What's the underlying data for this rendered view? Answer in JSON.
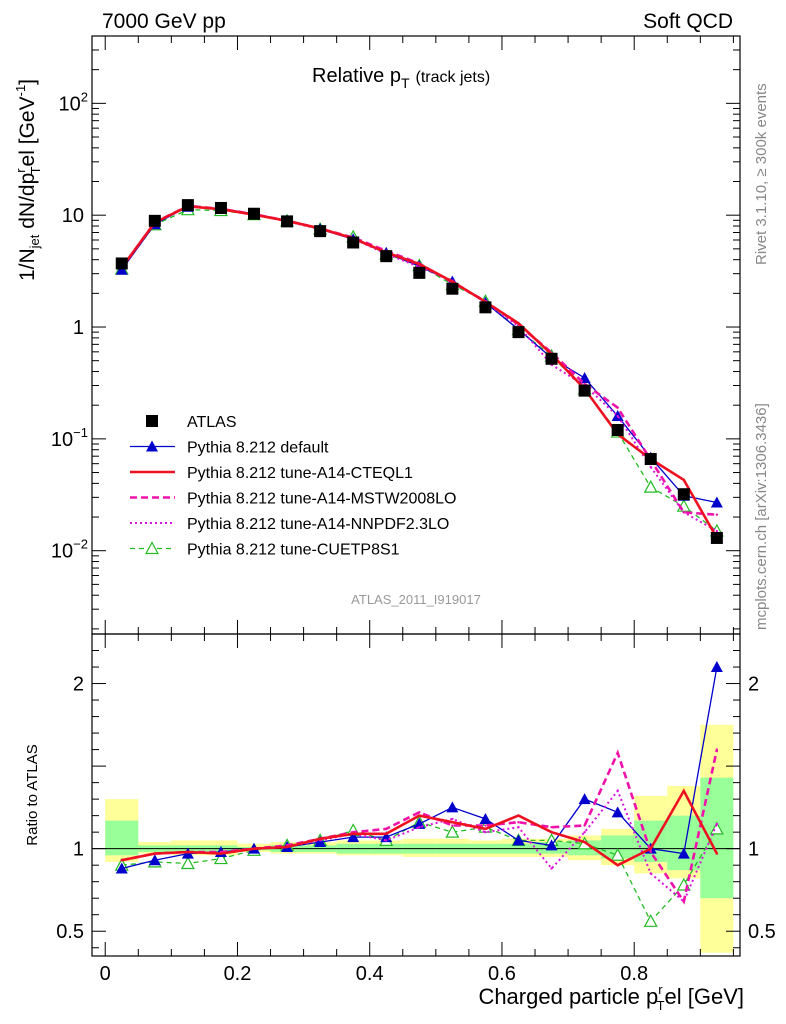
{
  "header": {
    "left": "7000 GeV pp",
    "right": "Soft QCD"
  },
  "side": {
    "rivet": "Rivet 3.1.10, ≥ 300k events",
    "mcplots": "mcplots.cern.ch [arXiv:1306.3436]"
  },
  "colors": {
    "atlas": "#000000",
    "default": "#0000cc",
    "cteql1": "#ee1122",
    "mstw": "#ee11aa",
    "nnpdf": "#dd11dd",
    "cuetp8s1": "#22bb22",
    "band_yellow": "#ffff99",
    "band_green": "#99ff99"
  },
  "chart_data": [
    {
      "type": "line",
      "title": "Relative p",
      "title_sub": "T",
      "title_suffix": "(track jets)",
      "watermark": "ATLAS_2011_I919017",
      "ylabel": "1/N",
      "ylabel_sub1": "jet",
      "ylabel_mid": " dN/dp",
      "ylabel_sup": "r",
      "ylabel_sub2": "T",
      "ylabel_tail": "el [GeV",
      "ylabel_sup2": "-1",
      "ylabel_end": "]",
      "yscale": "log",
      "ylim": [
        0.0018,
        400
      ],
      "xlim": [
        -0.02,
        0.96
      ],
      "yticks": [
        {
          "value": 100,
          "label": "10",
          "sup": "2"
        },
        {
          "value": 10,
          "label": "10",
          "sup": ""
        },
        {
          "value": 1,
          "label": "1",
          "sup": ""
        },
        {
          "value": 0.1,
          "label": "10",
          "sup": "−1"
        },
        {
          "value": 0.01,
          "label": "10",
          "sup": "−2"
        }
      ],
      "x": [
        0.025,
        0.075,
        0.125,
        0.175,
        0.225,
        0.275,
        0.325,
        0.375,
        0.425,
        0.475,
        0.525,
        0.575,
        0.625,
        0.675,
        0.725,
        0.775,
        0.825,
        0.875,
        0.925
      ],
      "series": [
        {
          "key": "atlas",
          "name": "ATLAS",
          "values": [
            3.7,
            8.9,
            12.3,
            11.6,
            10.3,
            8.8,
            7.2,
            5.7,
            4.3,
            3.05,
            2.2,
            1.5,
            0.9,
            0.52,
            0.27,
            0.12,
            0.066,
            0.032,
            0.013
          ]
        },
        {
          "key": "default",
          "name": "Pythia 8.212 default",
          "values": [
            3.25,
            8.3,
            11.9,
            11.4,
            10.3,
            8.9,
            7.5,
            6.1,
            4.6,
            3.5,
            2.55,
            1.65,
            0.95,
            0.53,
            0.35,
            0.16,
            0.068,
            0.031,
            0.027
          ]
        },
        {
          "key": "cteql1",
          "name": "Pythia 8.212 tune-A14-CTEQL1",
          "values": [
            3.4,
            8.6,
            12.0,
            11.3,
            10.1,
            8.9,
            7.6,
            6.2,
            4.65,
            3.65,
            2.55,
            1.68,
            1.08,
            0.57,
            0.28,
            0.11,
            0.066,
            0.043,
            0.013
          ]
        },
        {
          "key": "mstw",
          "name": "Pythia 8.212 tune-A14-MSTW2008LO",
          "values": [
            3.4,
            8.6,
            12.1,
            11.4,
            10.2,
            8.9,
            7.6,
            6.3,
            4.8,
            3.7,
            2.5,
            1.7,
            1.05,
            0.59,
            0.31,
            0.19,
            0.065,
            0.022,
            0.021
          ]
        },
        {
          "key": "nnpdf",
          "name": "Pythia 8.212 tune-A14-NNPDF2.3LO",
          "values": [
            3.4,
            8.6,
            12.0,
            11.3,
            10.1,
            8.8,
            7.5,
            6.2,
            4.5,
            3.45,
            2.6,
            1.65,
            1.02,
            0.46,
            0.3,
            0.16,
            0.056,
            0.022,
            0.015
          ]
        },
        {
          "key": "cuetp8s1",
          "name": "Pythia 8.212 tune-CUETP8S1",
          "values": [
            3.3,
            8.2,
            11.2,
            11.0,
            10.1,
            8.9,
            7.5,
            6.4,
            4.5,
            3.55,
            2.4,
            1.7,
            0.95,
            0.55,
            0.28,
            0.115,
            0.037,
            0.025,
            0.015
          ]
        }
      ]
    },
    {
      "type": "line",
      "xlabel": "Charged particle p",
      "xlabel_sup": "r",
      "xlabel_sub": "T",
      "xlabel_tail": "el [GeV]",
      "ylabel": "Ratio to ATLAS",
      "ylim": [
        0.35,
        2.3
      ],
      "xlim": [
        -0.02,
        0.96
      ],
      "yticks": [
        {
          "value": 0.5,
          "label": "0.5"
        },
        {
          "value": 1,
          "label": "1"
        },
        {
          "value": 2,
          "label": "2"
        }
      ],
      "xticks": [
        {
          "value": 0,
          "label": "0"
        },
        {
          "value": 0.2,
          "label": "0.2"
        },
        {
          "value": 0.4,
          "label": "0.4"
        },
        {
          "value": 0.6,
          "label": "0.6"
        },
        {
          "value": 0.8,
          "label": "0.8"
        }
      ],
      "band_edges": [
        0,
        0.05,
        0.1,
        0.15,
        0.2,
        0.25,
        0.3,
        0.35,
        0.4,
        0.45,
        0.5,
        0.55,
        0.6,
        0.65,
        0.7,
        0.75,
        0.8,
        0.85,
        0.9,
        0.95
      ],
      "yellow_band": [
        [
          0.92,
          1.3
        ],
        [
          0.97,
          1.04
        ],
        [
          0.96,
          1.05
        ],
        [
          0.96,
          1.05
        ],
        [
          0.98,
          1.03
        ],
        [
          0.97,
          1.04
        ],
        [
          0.97,
          1.04
        ],
        [
          0.96,
          1.05
        ],
        [
          0.96,
          1.05
        ],
        [
          0.95,
          1.06
        ],
        [
          0.95,
          1.06
        ],
        [
          0.95,
          1.05
        ],
        [
          0.95,
          1.06
        ],
        [
          0.95,
          1.06
        ],
        [
          0.93,
          1.08
        ],
        [
          0.9,
          1.12
        ],
        [
          0.85,
          1.32
        ],
        [
          0.82,
          1.38
        ],
        [
          0.37,
          1.75
        ]
      ],
      "green_band": [
        [
          0.96,
          1.17
        ],
        [
          0.98,
          1.02
        ],
        [
          0.98,
          1.02
        ],
        [
          0.98,
          1.02
        ],
        [
          0.99,
          1.01
        ],
        [
          0.98,
          1.02
        ],
        [
          0.98,
          1.02
        ],
        [
          0.97,
          1.03
        ],
        [
          0.97,
          1.03
        ],
        [
          0.97,
          1.03
        ],
        [
          0.97,
          1.03
        ],
        [
          0.97,
          1.03
        ],
        [
          0.97,
          1.03
        ],
        [
          0.97,
          1.04
        ],
        [
          0.96,
          1.05
        ],
        [
          0.94,
          1.08
        ],
        [
          0.92,
          1.17
        ],
        [
          0.87,
          1.2
        ],
        [
          0.7,
          1.43
        ]
      ],
      "series": [
        {
          "key": "default",
          "name": "Pythia 8.212 default",
          "values": [
            0.88,
            0.93,
            0.97,
            0.98,
            1.0,
            1.01,
            1.04,
            1.07,
            1.07,
            1.15,
            1.25,
            1.18,
            1.05,
            1.02,
            1.3,
            1.22,
            1.0,
            0.97,
            2.1
          ]
        },
        {
          "key": "cteql1",
          "name": "Pythia 8.212 tune-A14-CTEQL1",
          "values": [
            0.93,
            0.97,
            0.98,
            0.97,
            1.0,
            1.01,
            1.06,
            1.09,
            1.09,
            1.2,
            1.16,
            1.12,
            1.2,
            1.1,
            1.04,
            0.9,
            1.0,
            1.35,
            0.97
          ]
        },
        {
          "key": "mstw",
          "name": "Pythia 8.212 tune-A14-MSTW2008LO",
          "values": [
            0.93,
            0.97,
            0.98,
            0.98,
            1.0,
            1.02,
            1.06,
            1.1,
            1.12,
            1.22,
            1.14,
            1.14,
            1.16,
            1.13,
            1.14,
            1.58,
            0.98,
            0.68,
            1.6
          ]
        },
        {
          "key": "nnpdf",
          "name": "Pythia 8.212 tune-A14-NNPDF2.3LO",
          "values": [
            0.93,
            0.97,
            0.98,
            0.97,
            1.0,
            1.01,
            1.05,
            1.09,
            1.05,
            1.13,
            1.18,
            1.1,
            1.13,
            0.88,
            1.1,
            1.35,
            0.85,
            0.68,
            1.15
          ]
        },
        {
          "key": "cuetp8s1",
          "name": "Pythia 8.212 tune-CUETP8S1",
          "values": [
            0.9,
            0.92,
            0.91,
            0.94,
            0.99,
            1.02,
            1.05,
            1.11,
            1.05,
            1.16,
            1.1,
            1.13,
            1.05,
            1.05,
            1.03,
            0.96,
            0.56,
            0.78,
            1.12
          ]
        }
      ]
    }
  ]
}
